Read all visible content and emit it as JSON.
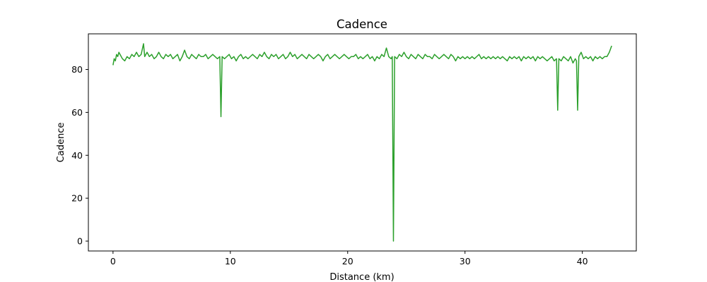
{
  "chart_data": {
    "type": "line",
    "title": "Cadence",
    "xlabel": "Distance (km)",
    "ylabel": "Cadence",
    "xlim": [
      -2.1,
      44.6
    ],
    "ylim": [
      -4.6,
      96.6
    ],
    "x_ticks": [
      0,
      10,
      20,
      30,
      40
    ],
    "x_tick_labels": [
      "0",
      "10",
      "20",
      "30",
      "40"
    ],
    "y_ticks": [
      0,
      20,
      40,
      60,
      80
    ],
    "y_tick_labels": [
      "0",
      "20",
      "40",
      "60",
      "80"
    ],
    "grid": false,
    "series": [
      {
        "color": "#2ca02c",
        "points": [
          [
            0.0,
            82
          ],
          [
            0.1,
            85
          ],
          [
            0.2,
            84
          ],
          [
            0.3,
            87
          ],
          [
            0.4,
            86
          ],
          [
            0.5,
            88
          ],
          [
            0.6,
            87
          ],
          [
            0.8,
            85
          ],
          [
            1.0,
            84
          ],
          [
            1.2,
            86
          ],
          [
            1.4,
            85
          ],
          [
            1.6,
            87
          ],
          [
            1.8,
            86
          ],
          [
            2.0,
            88
          ],
          [
            2.2,
            86
          ],
          [
            2.4,
            87
          ],
          [
            2.6,
            92
          ],
          [
            2.7,
            86
          ],
          [
            2.9,
            88
          ],
          [
            3.1,
            86
          ],
          [
            3.3,
            87
          ],
          [
            3.5,
            85
          ],
          [
            3.7,
            86
          ],
          [
            3.9,
            88
          ],
          [
            4.1,
            86
          ],
          [
            4.3,
            85
          ],
          [
            4.5,
            87
          ],
          [
            4.7,
            86
          ],
          [
            4.9,
            87
          ],
          [
            5.1,
            85
          ],
          [
            5.3,
            86
          ],
          [
            5.5,
            87
          ],
          [
            5.7,
            84
          ],
          [
            5.9,
            86
          ],
          [
            6.1,
            89
          ],
          [
            6.3,
            86
          ],
          [
            6.5,
            85
          ],
          [
            6.7,
            87
          ],
          [
            6.9,
            86
          ],
          [
            7.1,
            85
          ],
          [
            7.3,
            87
          ],
          [
            7.5,
            86
          ],
          [
            7.7,
            86
          ],
          [
            7.9,
            87
          ],
          [
            8.1,
            85
          ],
          [
            8.3,
            86
          ],
          [
            8.5,
            87
          ],
          [
            8.7,
            86
          ],
          [
            8.9,
            85
          ],
          [
            9.1,
            86
          ],
          [
            9.2,
            58
          ],
          [
            9.3,
            86
          ],
          [
            9.5,
            85
          ],
          [
            9.7,
            86
          ],
          [
            9.9,
            87
          ],
          [
            10.1,
            85
          ],
          [
            10.3,
            86
          ],
          [
            10.5,
            84
          ],
          [
            10.7,
            86
          ],
          [
            10.9,
            87
          ],
          [
            11.1,
            85
          ],
          [
            11.3,
            86
          ],
          [
            11.5,
            85
          ],
          [
            11.7,
            86
          ],
          [
            11.9,
            87
          ],
          [
            12.1,
            86
          ],
          [
            12.3,
            85
          ],
          [
            12.5,
            87
          ],
          [
            12.7,
            86
          ],
          [
            12.9,
            88
          ],
          [
            13.1,
            86
          ],
          [
            13.3,
            85
          ],
          [
            13.5,
            87
          ],
          [
            13.7,
            86
          ],
          [
            13.9,
            87
          ],
          [
            14.1,
            85
          ],
          [
            14.3,
            86
          ],
          [
            14.5,
            87
          ],
          [
            14.7,
            85
          ],
          [
            14.9,
            86
          ],
          [
            15.1,
            88
          ],
          [
            15.3,
            86
          ],
          [
            15.5,
            87
          ],
          [
            15.7,
            85
          ],
          [
            15.9,
            86
          ],
          [
            16.1,
            87
          ],
          [
            16.3,
            86
          ],
          [
            16.5,
            85
          ],
          [
            16.7,
            87
          ],
          [
            16.9,
            86
          ],
          [
            17.1,
            85
          ],
          [
            17.3,
            86
          ],
          [
            17.5,
            87
          ],
          [
            17.7,
            86
          ],
          [
            17.9,
            84
          ],
          [
            18.1,
            86
          ],
          [
            18.3,
            87
          ],
          [
            18.5,
            85
          ],
          [
            18.7,
            86
          ],
          [
            18.9,
            87
          ],
          [
            19.1,
            86
          ],
          [
            19.3,
            85
          ],
          [
            19.5,
            86
          ],
          [
            19.7,
            87
          ],
          [
            19.9,
            86
          ],
          [
            20.1,
            85
          ],
          [
            20.3,
            86
          ],
          [
            20.5,
            86
          ],
          [
            20.7,
            87
          ],
          [
            20.9,
            85
          ],
          [
            21.1,
            86
          ],
          [
            21.3,
            85
          ],
          [
            21.5,
            86
          ],
          [
            21.7,
            87
          ],
          [
            21.9,
            85
          ],
          [
            22.1,
            86
          ],
          [
            22.3,
            84
          ],
          [
            22.5,
            86
          ],
          [
            22.7,
            85
          ],
          [
            22.9,
            87
          ],
          [
            23.1,
            86
          ],
          [
            23.3,
            90
          ],
          [
            23.5,
            86
          ],
          [
            23.7,
            85
          ],
          [
            23.8,
            86
          ],
          [
            23.9,
            0
          ],
          [
            24.0,
            86
          ],
          [
            24.2,
            85
          ],
          [
            24.4,
            87
          ],
          [
            24.6,
            86
          ],
          [
            24.8,
            88
          ],
          [
            25.0,
            86
          ],
          [
            25.2,
            85
          ],
          [
            25.4,
            87
          ],
          [
            25.6,
            86
          ],
          [
            25.8,
            85
          ],
          [
            26.0,
            87
          ],
          [
            26.2,
            86
          ],
          [
            26.4,
            85
          ],
          [
            26.6,
            87
          ],
          [
            26.8,
            86
          ],
          [
            27.0,
            86
          ],
          [
            27.2,
            85
          ],
          [
            27.4,
            87
          ],
          [
            27.6,
            86
          ],
          [
            27.8,
            85
          ],
          [
            28.0,
            86
          ],
          [
            28.2,
            87
          ],
          [
            28.4,
            86
          ],
          [
            28.6,
            85
          ],
          [
            28.8,
            87
          ],
          [
            29.0,
            86
          ],
          [
            29.2,
            84
          ],
          [
            29.4,
            86
          ],
          [
            29.6,
            85
          ],
          [
            29.8,
            86
          ],
          [
            30.0,
            85
          ],
          [
            30.2,
            86
          ],
          [
            30.4,
            85
          ],
          [
            30.6,
            86
          ],
          [
            30.8,
            85
          ],
          [
            31.0,
            86
          ],
          [
            31.2,
            87
          ],
          [
            31.4,
            85
          ],
          [
            31.6,
            86
          ],
          [
            31.8,
            85
          ],
          [
            32.0,
            86
          ],
          [
            32.2,
            85
          ],
          [
            32.4,
            86
          ],
          [
            32.6,
            85
          ],
          [
            32.8,
            86
          ],
          [
            33.0,
            85
          ],
          [
            33.2,
            86
          ],
          [
            33.4,
            85
          ],
          [
            33.6,
            84
          ],
          [
            33.8,
            86
          ],
          [
            34.0,
            85
          ],
          [
            34.2,
            86
          ],
          [
            34.4,
            85
          ],
          [
            34.6,
            86
          ],
          [
            34.8,
            84
          ],
          [
            35.0,
            86
          ],
          [
            35.2,
            85
          ],
          [
            35.4,
            86
          ],
          [
            35.6,
            85
          ],
          [
            35.8,
            86
          ],
          [
            36.0,
            84
          ],
          [
            36.2,
            86
          ],
          [
            36.4,
            85
          ],
          [
            36.6,
            86
          ],
          [
            36.8,
            85
          ],
          [
            37.0,
            84
          ],
          [
            37.2,
            85
          ],
          [
            37.4,
            86
          ],
          [
            37.6,
            84
          ],
          [
            37.8,
            85
          ],
          [
            37.9,
            61
          ],
          [
            38.0,
            85
          ],
          [
            38.2,
            84
          ],
          [
            38.4,
            86
          ],
          [
            38.6,
            85
          ],
          [
            38.8,
            84
          ],
          [
            39.0,
            86
          ],
          [
            39.2,
            83
          ],
          [
            39.4,
            85
          ],
          [
            39.5,
            84
          ],
          [
            39.6,
            61
          ],
          [
            39.7,
            86
          ],
          [
            39.9,
            88
          ],
          [
            40.1,
            85
          ],
          [
            40.3,
            86
          ],
          [
            40.5,
            85
          ],
          [
            40.7,
            86
          ],
          [
            40.9,
            84
          ],
          [
            41.1,
            86
          ],
          [
            41.3,
            85
          ],
          [
            41.5,
            86
          ],
          [
            41.7,
            85
          ],
          [
            41.9,
            86
          ],
          [
            42.1,
            86
          ],
          [
            42.3,
            88
          ],
          [
            42.5,
            91
          ]
        ]
      }
    ]
  }
}
